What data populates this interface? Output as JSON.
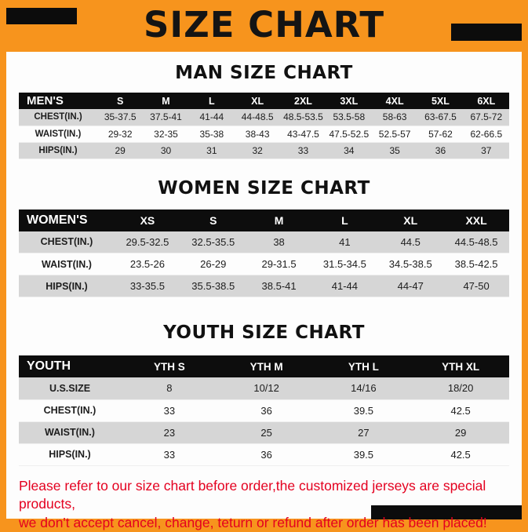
{
  "page": {
    "title": "SIZE CHART",
    "footer": {
      "line1": "Please refer to our size chart before order,the customized jerseys are special products,",
      "line2": "we don't accept cancel, change, teturn or refund after order has been placed!"
    },
    "colors": {
      "frame_orange": "#F7941D",
      "table_header_black": "#0D0D0D",
      "row_stripe_gray": "#D6D6D6",
      "footer_red": "#E4001F"
    }
  },
  "sections": [
    {
      "heading": "MAN SIZE CHART",
      "table": {
        "header": [
          "MEN'S",
          "S",
          "M",
          "L",
          "XL",
          "2XL",
          "3XL",
          "4XL",
          "5XL",
          "6XL"
        ],
        "rows": [
          [
            "CHEST(IN.)",
            "35-37.5",
            "37.5-41",
            "41-44",
            "44-48.5",
            "48.5-53.5",
            "53.5-58",
            "58-63",
            "63-67.5",
            "67.5-72"
          ],
          [
            "WAIST(IN.)",
            "29-32",
            "32-35",
            "35-38",
            "38-43",
            "43-47.5",
            "47.5-52.5",
            "52.5-57",
            "57-62",
            "62-66.5"
          ],
          [
            "HIPS(IN.)",
            "29",
            "30",
            "31",
            "32",
            "33",
            "34",
            "35",
            "36",
            "37"
          ]
        ]
      }
    },
    {
      "heading": "WOMEN SIZE CHART",
      "table": {
        "header": [
          "WOMEN'S",
          "XS",
          "S",
          "M",
          "L",
          "XL",
          "XXL"
        ],
        "rows": [
          [
            "CHEST(IN.)",
            "29.5-32.5",
            "32.5-35.5",
            "38",
            "41",
            "44.5",
            "44.5-48.5"
          ],
          [
            "WAIST(IN.)",
            "23.5-26",
            "26-29",
            "29-31.5",
            "31.5-34.5",
            "34.5-38.5",
            "38.5-42.5"
          ],
          [
            "HIPS(IN.)",
            "33-35.5",
            "35.5-38.5",
            "38.5-41",
            "41-44",
            "44-47",
            "47-50"
          ]
        ]
      }
    },
    {
      "heading": "YOUTH SIZE CHART",
      "table": {
        "header": [
          "YOUTH",
          "YTH S",
          "YTH M",
          "YTH L",
          "YTH XL"
        ],
        "rows": [
          [
            "U.S.SIZE",
            "8",
            "10/12",
            "14/16",
            "18/20"
          ],
          [
            "CHEST(IN.)",
            "33",
            "36",
            "39.5",
            "42.5"
          ],
          [
            "WAIST(IN.)",
            "23",
            "25",
            "27",
            "29"
          ],
          [
            "HIPS(IN.)",
            "33",
            "36",
            "39.5",
            "42.5"
          ]
        ]
      }
    }
  ]
}
